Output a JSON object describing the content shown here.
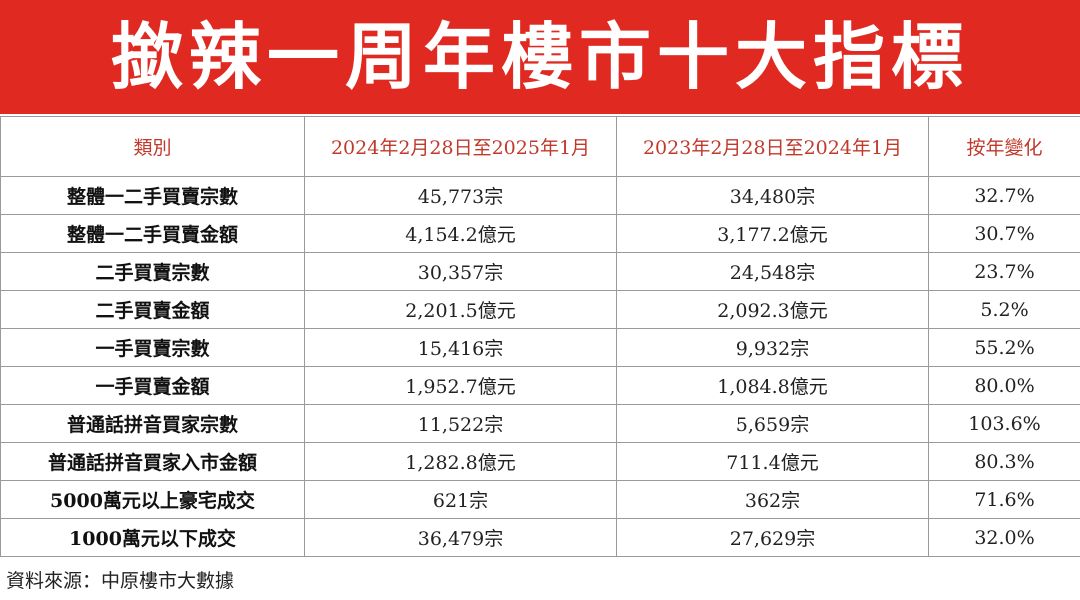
{
  "title": "撳辣一周年樓市十大指標",
  "colors": {
    "banner": "#e02a21",
    "header_text": "#c0392b"
  },
  "table": {
    "headers": [
      "類別",
      "2024年2月28日至2025年1月",
      "2023年2月28日至2024年1月",
      "按年變化"
    ],
    "rows": [
      [
        "整體一二手買賣宗數",
        "45,773宗",
        "34,480宗",
        "32.7%"
      ],
      [
        "整體一二手買賣金額",
        "4,154.2億元",
        "3,177.2億元",
        "30.7%"
      ],
      [
        "二手買賣宗數",
        "30,357宗",
        "24,548宗",
        "23.7%"
      ],
      [
        "二手買賣金額",
        "2,201.5億元",
        "2,092.3億元",
        "5.2%"
      ],
      [
        "一手買賣宗數",
        "15,416宗",
        "9,932宗",
        "55.2%"
      ],
      [
        "一手買賣金額",
        "1,952.7億元",
        "1,084.8億元",
        "80.0%"
      ],
      [
        "普通話拼音買家宗數",
        "11,522宗",
        "5,659宗",
        "103.6%"
      ],
      [
        "普通話拼音買家入市金額",
        "1,282.8億元",
        "711.4億元",
        "80.3%"
      ],
      [
        "5000萬元以上豪宅成交",
        "621宗",
        "362宗",
        "71.6%"
      ],
      [
        "1000萬元以下成交",
        "36,479宗",
        "27,629宗",
        "32.0%"
      ]
    ]
  },
  "source": "資料來源：中原樓市大數據"
}
